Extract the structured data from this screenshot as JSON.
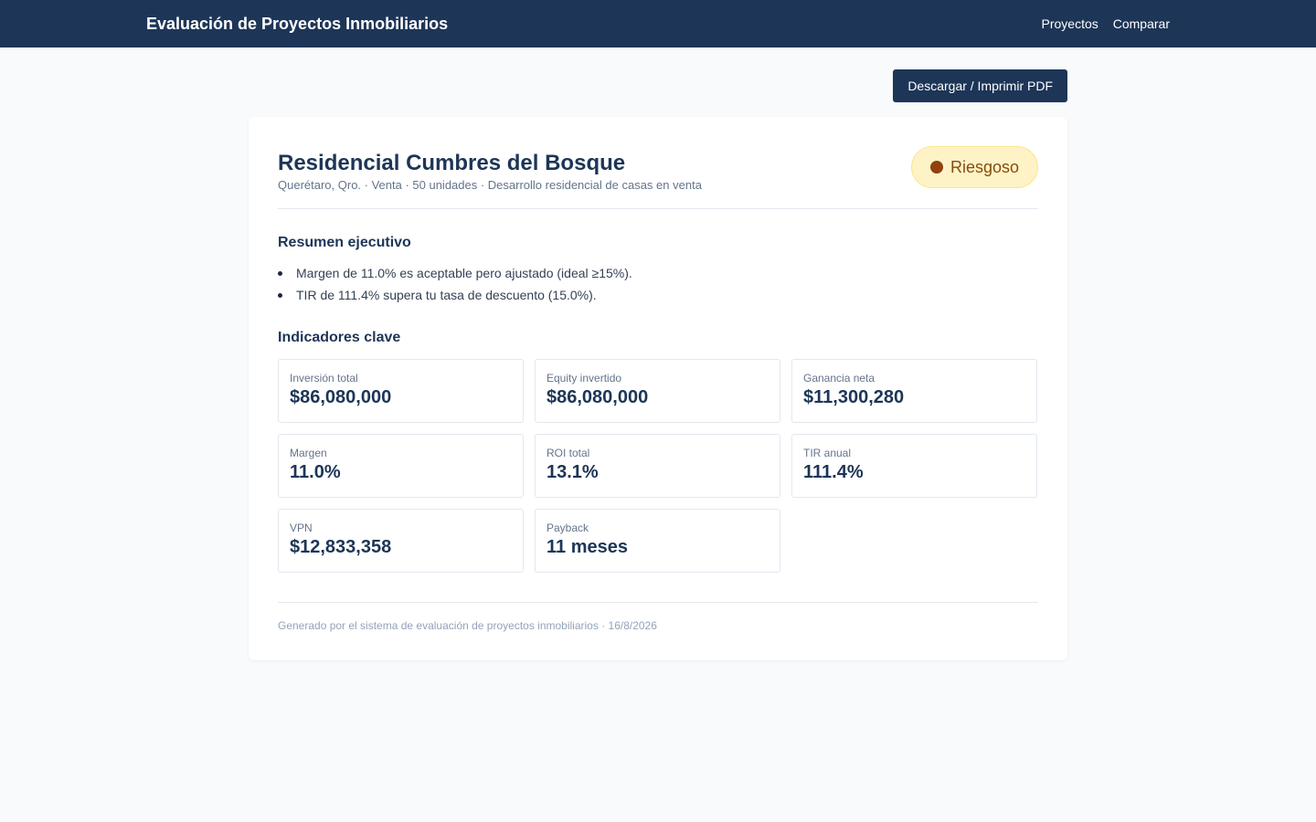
{
  "app": {
    "title": "Evaluación de Proyectos Inmobiliarios"
  },
  "nav": {
    "items": [
      "Proyectos",
      "Comparar"
    ]
  },
  "actions": {
    "pdf_label": "Descargar / Imprimir PDF"
  },
  "project": {
    "name": "Residencial Cumbres del Bosque",
    "subtitle": "Querétaro, Qro. · Venta · 50 unidades · Desarrollo residencial de casas en venta",
    "status": {
      "label": "Riesgoso",
      "color": "#92400e",
      "background": "#fef3c7"
    }
  },
  "summary": {
    "title": "Resumen ejecutivo",
    "bullets": [
      "Margen de 11.0% es aceptable pero ajustado (ideal ≥15%).",
      "TIR de 111.4% supera tu tasa de descuento (15.0%)."
    ]
  },
  "kpis": {
    "title": "Indicadores clave",
    "items": [
      {
        "label": "Inversión total",
        "value": "$86,080,000"
      },
      {
        "label": "Equity invertido",
        "value": "$86,080,000"
      },
      {
        "label": "Ganancia neta",
        "value": "$11,300,280"
      },
      {
        "label": "Margen",
        "value": "11.0%"
      },
      {
        "label": "ROI total",
        "value": "13.1%"
      },
      {
        "label": "TIR anual",
        "value": "111.4%"
      },
      {
        "label": "VPN",
        "value": "$12,833,358"
      },
      {
        "label": "Payback",
        "value": "11 meses"
      }
    ]
  },
  "footer": {
    "text": "Generado por el sistema de evaluación de proyectos inmobiliarios · 16/8/2026"
  },
  "colors": {
    "brand": "#1d3557",
    "background": "#f8fafc"
  }
}
